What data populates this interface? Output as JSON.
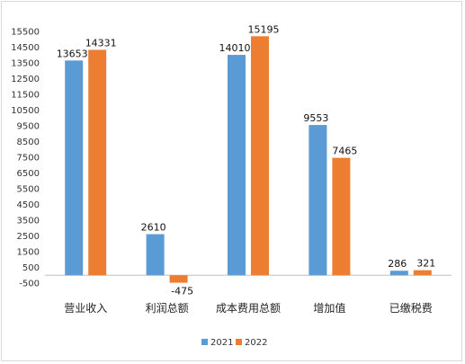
{
  "chart_data": {
    "type": "bar",
    "categories": [
      "营业收入",
      "利润总额",
      "成本费用总额",
      "增加值",
      "已缴税费"
    ],
    "series": [
      {
        "name": "2021",
        "values": [
          13653,
          2610,
          14010,
          9553,
          286
        ],
        "color": "#5b9bd5"
      },
      {
        "name": "2022",
        "values": [
          14331,
          -475,
          15195,
          7465,
          321
        ],
        "color": "#ed7d31"
      }
    ],
    "ylim": [
      -500,
      15500
    ],
    "yticks": [
      -500,
      500,
      1500,
      2500,
      3500,
      4500,
      5500,
      6500,
      7500,
      8500,
      9500,
      10500,
      11500,
      12500,
      13500,
      14500,
      15500
    ],
    "grid": false,
    "legend": "bottom-center",
    "title": "",
    "xlabel": "",
    "ylabel": ""
  }
}
